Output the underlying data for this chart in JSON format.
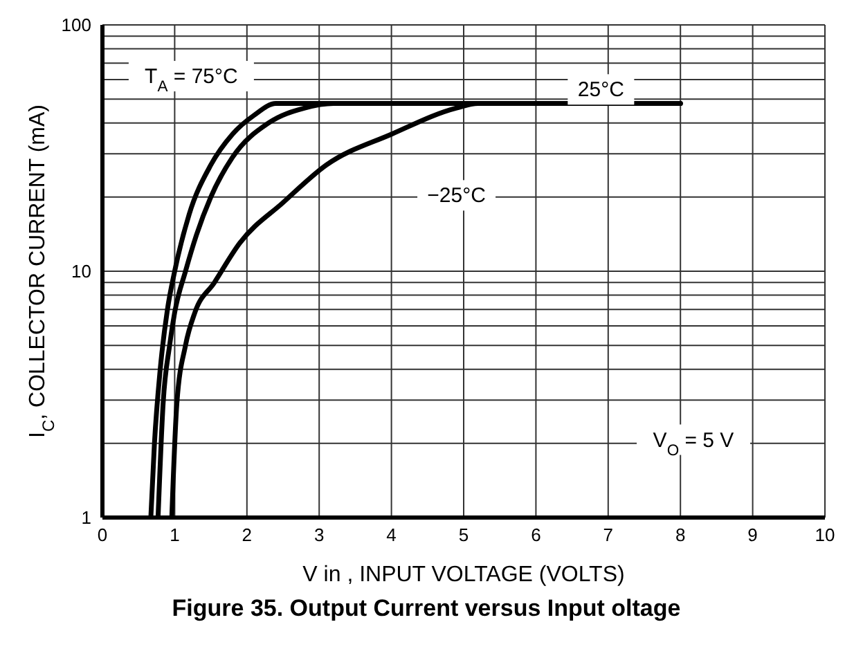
{
  "chart_data": {
    "type": "line",
    "title": "Figure 35. Output Current versus Input oltage",
    "xlabel": "V in , INPUT VOLTAGE (VOLTS)",
    "ylabel": "I$_{C}$, COLLECTOR CURRENT (mA)",
    "xlim": [
      0,
      10
    ],
    "xticks": [
      0,
      1,
      2,
      3,
      4,
      5,
      6,
      7,
      8,
      9,
      10
    ],
    "ylim": [
      1,
      100
    ],
    "log": "y",
    "yticks": [
      1,
      {
        "value": 2,
        "label": null
      },
      {
        "value": 3,
        "label": null
      },
      {
        "value": 4,
        "label": null
      },
      {
        "value": 5,
        "label": null
      },
      {
        "value": 6,
        "label": null
      },
      {
        "value": 7,
        "label": null
      },
      {
        "value": 8,
        "label": null
      },
      {
        "value": 9,
        "label": null
      },
      10,
      {
        "value": 20,
        "label": null
      },
      {
        "value": 30,
        "label": null
      },
      {
        "value": 40,
        "label": null
      },
      {
        "value": 50,
        "label": null
      },
      {
        "value": 60,
        "label": null
      },
      {
        "value": 70,
        "label": null
      },
      {
        "value": 80,
        "label": null
      },
      {
        "value": 90,
        "label": null
      },
      100
    ],
    "grid": true,
    "marker": "none",
    "line_style": "solid",
    "series": [
      {
        "color": "#000000",
        "x": [
          0.67,
          0.72,
          0.8,
          0.9,
          1.0,
          1.2,
          1.5,
          1.8,
          2.1,
          2.4,
          8
        ],
        "values": [
          1,
          2,
          4,
          7,
          10,
          17,
          27,
          36,
          43,
          48,
          48
        ]
      },
      {
        "color": "#000000",
        "x": [
          0.77,
          0.84,
          0.93,
          1.0,
          1.15,
          1.3,
          1.5,
          1.8,
          2.3,
          2.8,
          3.2,
          8
        ],
        "values": [
          1,
          2.9,
          5,
          6.8,
          10,
          14,
          20,
          29,
          40,
          46,
          48,
          48
        ]
      },
      {
        "color": "#000000",
        "x": [
          0.96,
          1.03,
          1.15,
          1.28,
          1.55,
          1.9,
          2.5,
          3.1,
          4.0,
          4.9,
          5.2,
          8
        ],
        "values": [
          1,
          2.9,
          5,
          6.8,
          9,
          13,
          19,
          27,
          36,
          46,
          48,
          48
        ]
      }
    ],
    "annotations": [
      "T$_{A}$ = 75°C",
      "25°C",
      "−25°C",
      "V$_{O}$ = 5 V"
    ]
  }
}
